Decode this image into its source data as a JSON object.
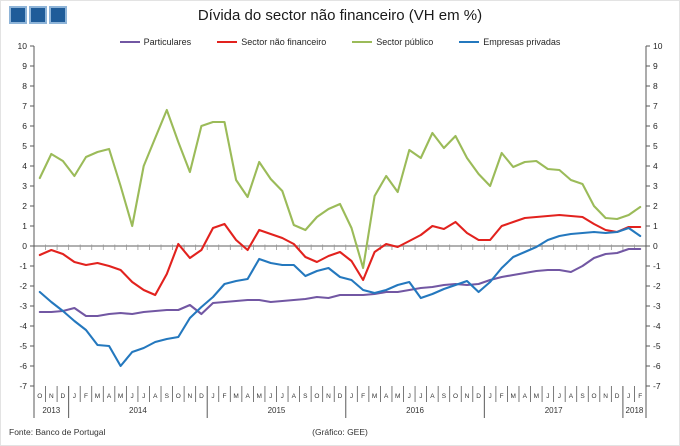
{
  "title": "Dívida do sector não financeiro (VH em %)",
  "footer": {
    "source": "Fonte: Banco de Portugal",
    "credit": "(Gráfico: GEE)"
  },
  "logo": {
    "square_count": 3,
    "fill": "#1F5C99",
    "border": "#8EB4D8"
  },
  "colors": {
    "axis": "#595959",
    "zero_line": "#969696",
    "tick_text": "#262626",
    "month_text": "#333333",
    "year_text": "#333333"
  },
  "chart_data": {
    "type": "line",
    "title": "Dívida do sector não financeiro (VH em %)",
    "ylabel": "",
    "xlabel": "",
    "ylim": [
      -7,
      10
    ],
    "ytick_step": 1,
    "grid": false,
    "zero_line": true,
    "legend_position": "top",
    "x_categories": {
      "months": [
        "O",
        "N",
        "D",
        "J",
        "F",
        "M",
        "A",
        "M",
        "J",
        "J",
        "A",
        "S",
        "O",
        "N",
        "D",
        "J",
        "F",
        "M",
        "A",
        "M",
        "J",
        "J",
        "A",
        "S",
        "O",
        "N",
        "D",
        "J",
        "F",
        "M",
        "A",
        "M",
        "J",
        "J",
        "A",
        "S",
        "O",
        "N",
        "D",
        "J",
        "F",
        "M",
        "A",
        "M",
        "J",
        "J",
        "A",
        "S",
        "O",
        "N",
        "D",
        "J",
        "F"
      ],
      "years": [
        {
          "label": "2013",
          "count": 3
        },
        {
          "label": "2014",
          "count": 12
        },
        {
          "label": "2015",
          "count": 12
        },
        {
          "label": "2016",
          "count": 12
        },
        {
          "label": "2017",
          "count": 12
        },
        {
          "label": "2018",
          "count": 2
        }
      ]
    },
    "series": [
      {
        "name": "Particulares",
        "color": "#7257A3",
        "values": [
          -3.3,
          -3.3,
          -3.25,
          -3.1,
          -3.5,
          -3.5,
          -3.4,
          -3.35,
          -3.4,
          -3.3,
          -3.25,
          -3.2,
          -3.2,
          -2.95,
          -3.4,
          -2.85,
          -2.8,
          -2.75,
          -2.7,
          -2.7,
          -2.8,
          -2.75,
          -2.7,
          -2.65,
          -2.55,
          -2.6,
          -2.45,
          -2.45,
          -2.45,
          -2.4,
          -2.3,
          -2.3,
          -2.2,
          -2.1,
          -2.05,
          -1.95,
          -1.9,
          -1.95,
          -1.9,
          -1.7,
          -1.55,
          -1.45,
          -1.35,
          -1.25,
          -1.2,
          -1.2,
          -1.3,
          -1.0,
          -0.6,
          -0.4,
          -0.35,
          -0.15,
          -0.15
        ]
      },
      {
        "name": "Sector não financeiro",
        "color": "#E2221E",
        "values": [
          -0.45,
          -0.2,
          -0.4,
          -0.8,
          -0.95,
          -0.85,
          -1.0,
          -1.2,
          -1.8,
          -2.2,
          -2.45,
          -1.4,
          0.1,
          -0.6,
          -0.2,
          0.9,
          1.1,
          0.3,
          -0.2,
          0.8,
          0.6,
          0.4,
          0.1,
          -0.55,
          -0.8,
          -0.5,
          -0.3,
          -0.75,
          -1.7,
          -0.3,
          0.1,
          -0.05,
          0.25,
          0.55,
          1.0,
          0.85,
          1.2,
          0.65,
          0.3,
          0.3,
          1.0,
          1.2,
          1.4,
          1.45,
          1.5,
          1.55,
          1.5,
          1.45,
          1.1,
          0.8,
          0.7,
          0.95,
          0.95
        ]
      },
      {
        "name": "Sector público",
        "color": "#9BBB59",
        "values": [
          3.4,
          4.6,
          4.25,
          3.5,
          4.45,
          4.7,
          4.85,
          3.0,
          1.0,
          4.0,
          5.4,
          6.8,
          5.2,
          3.7,
          6.0,
          6.2,
          6.2,
          3.3,
          2.45,
          4.2,
          3.35,
          2.75,
          1.05,
          0.8,
          1.45,
          1.85,
          2.1,
          0.9,
          -1.1,
          2.5,
          3.5,
          2.7,
          4.8,
          4.4,
          5.65,
          4.9,
          5.5,
          4.4,
          3.6,
          3.0,
          4.65,
          3.95,
          4.2,
          4.25,
          3.85,
          3.8,
          3.3,
          3.1,
          2.0,
          1.4,
          1.35,
          1.55,
          1.95
        ]
      },
      {
        "name": "Empresas privadas",
        "color": "#2478BE",
        "values": [
          -2.3,
          -2.8,
          -3.25,
          -3.75,
          -4.2,
          -4.95,
          -5.0,
          -6.0,
          -5.3,
          -5.1,
          -4.8,
          -4.65,
          -4.55,
          -3.6,
          -3.05,
          -2.55,
          -1.9,
          -1.75,
          -1.65,
          -0.65,
          -0.85,
          -0.95,
          -0.95,
          -1.5,
          -1.25,
          -1.1,
          -1.55,
          -1.7,
          -2.2,
          -2.35,
          -2.2,
          -1.95,
          -1.8,
          -2.6,
          -2.4,
          -2.15,
          -1.95,
          -1.75,
          -2.3,
          -1.8,
          -1.1,
          -0.55,
          -0.3,
          -0.05,
          0.3,
          0.5,
          0.6,
          0.65,
          0.7,
          0.65,
          0.7,
          0.9,
          0.5
        ]
      }
    ]
  }
}
